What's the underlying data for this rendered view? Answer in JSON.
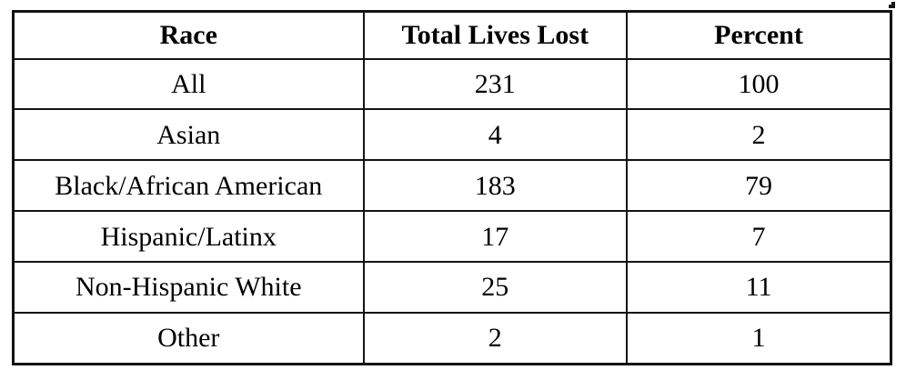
{
  "colors": {
    "background": "#ffffff",
    "border": "#131313",
    "text": "#000000"
  },
  "chart_data": {
    "type": "table",
    "columns": [
      "Race",
      "Total Lives Lost",
      "Percent"
    ],
    "rows": [
      [
        "All",
        "231",
        "100"
      ],
      [
        "Asian",
        "4",
        "2"
      ],
      [
        "Black/African American",
        "183",
        "79"
      ],
      [
        "Hispanic/Latinx",
        "17",
        "7"
      ],
      [
        "Non-Hispanic White",
        "25",
        "11"
      ],
      [
        "Other",
        "2",
        "1"
      ]
    ]
  }
}
